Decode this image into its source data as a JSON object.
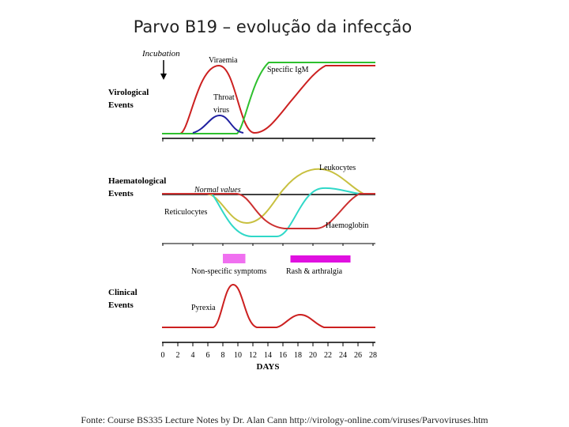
{
  "slide": {
    "title": "Parvo B19 – evolução da infecção",
    "source_note": "Fonte: Course BS335 Lecture Notes by Dr. Alan Cann http://virology-online.com/viruses/Parvoviruses.htm"
  },
  "panels": {
    "virological": {
      "label_line1": "Virological",
      "label_line2": "Events",
      "incubation_label": "Incubation",
      "viraemia_label": "Viraemia",
      "igm_label": "Specific IgM",
      "throat_label_line1": "Throat",
      "throat_label_line2": "virus"
    },
    "haematological": {
      "label_line1": "Haematological",
      "label_line2": "Events",
      "normal_values_label": "Normal values",
      "leukocytes_label": "Leukocytes",
      "reticulocytes_label": "Reticulocytes",
      "haemoglobin_label": "Haemoglobin"
    },
    "clinical": {
      "label_line1": "Clinical",
      "label_line2": "Events",
      "nonspecific_label": "Non-specific symptoms",
      "rash_label": "Rash & arthralgia",
      "pyrexia_label": "Pyrexia"
    }
  },
  "axis": {
    "title": "DAYS",
    "ticks": [
      "0",
      "2",
      "4",
      "6",
      "8",
      "10",
      "12",
      "14",
      "16",
      "18",
      "20",
      "22",
      "24",
      "26",
      "28"
    ]
  },
  "colors": {
    "viraemia": "#cc2020",
    "igm": "#2ec02e",
    "throat": "#2020a0",
    "leukocytes": "#c8c040",
    "reticulocytes": "#30d8c8",
    "haemoglobin": "#cc3030",
    "nonspecific_bar": "#f070f0",
    "rash_bar": "#e010e0",
    "pyrexia": "#cc2020",
    "baseline": "#000000"
  },
  "chart_data": {
    "type": "line",
    "x_unit": "days",
    "bars": [
      {
        "name": "Non-specific symptoms",
        "start": 8,
        "end": 11
      },
      {
        "name": "Rash & arthralgia",
        "start": 17,
        "end": 25
      }
    ]
  }
}
